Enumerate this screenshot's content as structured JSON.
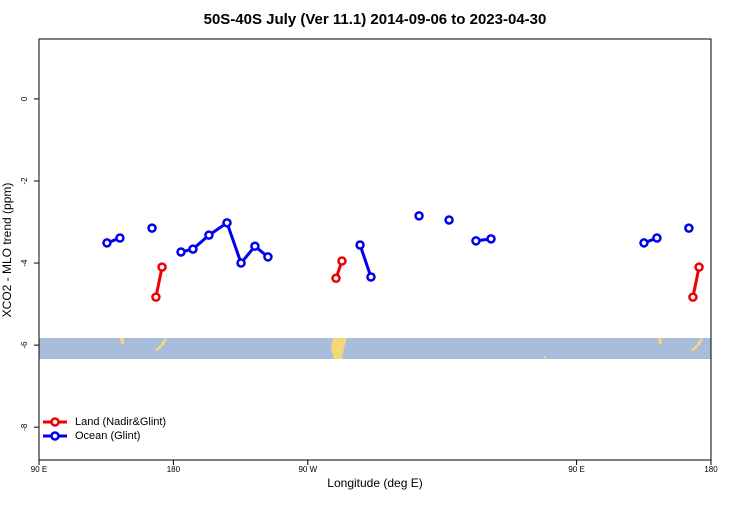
{
  "chart_data": {
    "type": "line",
    "title": "50S-40S July (Ver 11.1)   2014-09-06 to 2023-04-30",
    "x_label": "Longitude (deg E)",
    "y_label": "XCO2 - MLO trend (ppm)",
    "xlim": [
      90,
      540
    ],
    "xticks": [
      {
        "value": 90,
        "label": "90 E"
      },
      180,
      {
        "value": 270,
        "label": "90 W"
      },
      {
        "value": 450,
        "label": "90 E"
      },
      {
        "value": 540,
        "label": "180"
      }
    ],
    "ylim": [
      -8.8,
      1.46
    ],
    "yticks": [
      0,
      -2,
      -4,
      -6,
      -8
    ],
    "legend": "bottom-left",
    "series": [
      {
        "name": "Land (Nadir&Glint)",
        "color": "#ee0000",
        "x": [
          168.3,
          172.4,
          null,
          288.9,
          292.9,
          null,
          527.9,
          532.0
        ],
        "values": [
          -4.83,
          -4.1,
          null,
          -4.37,
          -3.95,
          null,
          -4.83,
          -4.1
        ]
      },
      {
        "name": "Ocean (Glint)",
        "color": "#0000ee",
        "x": [
          135.5,
          144.2,
          null,
          165.7,
          null,
          185.1,
          193.1,
          203.8,
          215.9,
          225.3,
          234.6,
          243.3,
          null,
          305.0,
          312.3,
          null,
          344.5,
          null,
          364.6,
          null,
          382.6,
          392.7,
          null,
          495.1,
          503.8,
          null,
          525.2
        ],
        "values": [
          -3.51,
          -3.39,
          null,
          -3.15,
          null,
          -3.73,
          -3.66,
          -3.32,
          -3.02,
          -4.0,
          -3.59,
          -3.85,
          null,
          -3.56,
          -4.34,
          null,
          -2.85,
          null,
          -2.95,
          null,
          -3.46,
          -3.41,
          null,
          -3.51,
          -3.39,
          null,
          -3.15
        ]
      }
    ]
  }
}
